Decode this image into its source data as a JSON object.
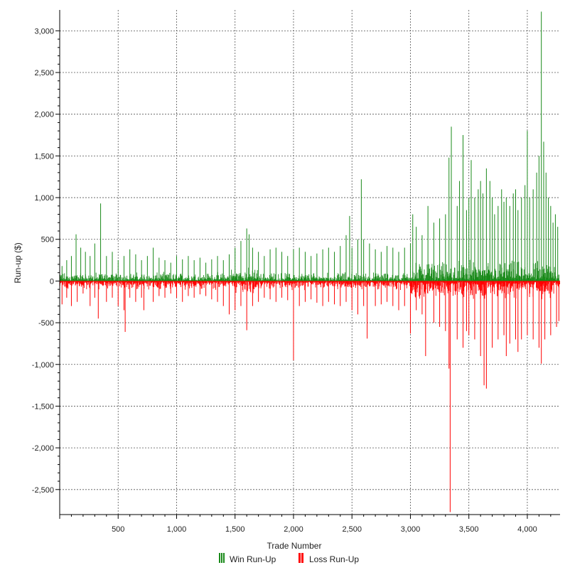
{
  "chart_data": {
    "type": "bar",
    "xlabel": "Trade Number",
    "ylabel": "Run-up ($)",
    "xlim": [
      0,
      4280
    ],
    "ylim": [
      -2800,
      3250
    ],
    "x_ticks": [
      {
        "value": 500,
        "label": "500"
      },
      {
        "value": 1000,
        "label": "1,000"
      },
      {
        "value": 1500,
        "label": "1,500"
      },
      {
        "value": 2000,
        "label": "2,000"
      },
      {
        "value": 2500,
        "label": "2,500"
      },
      {
        "value": 3000,
        "label": "3,000"
      },
      {
        "value": 3500,
        "label": "3,500"
      },
      {
        "value": 4000,
        "label": "4,000"
      }
    ],
    "y_ticks": [
      {
        "value": 3000,
        "label": "3,000"
      },
      {
        "value": 2500,
        "label": "2,500"
      },
      {
        "value": 2000,
        "label": "2,000"
      },
      {
        "value": 1500,
        "label": "1,500"
      },
      {
        "value": 1000,
        "label": "1,000"
      },
      {
        "value": 500,
        "label": "500"
      },
      {
        "value": 0,
        "label": "0"
      },
      {
        "value": -500,
        "label": "-500"
      },
      {
        "value": -1000,
        "label": "-1,000"
      },
      {
        "value": -1500,
        "label": "-1,500"
      },
      {
        "value": -2000,
        "label": "-2,000"
      },
      {
        "value": -2500,
        "label": "-2,500"
      }
    ],
    "grid": true,
    "legend_position": "bottom-center",
    "series": [
      {
        "name": "Win Run-Up",
        "color": "#1a8a1a",
        "points": [
          [
            20,
            180
          ],
          [
            60,
            250
          ],
          [
            100,
            300
          ],
          [
            140,
            560
          ],
          [
            180,
            400
          ],
          [
            220,
            350
          ],
          [
            260,
            300
          ],
          [
            300,
            450
          ],
          [
            350,
            930
          ],
          [
            400,
            300
          ],
          [
            450,
            350
          ],
          [
            500,
            250
          ],
          [
            550,
            300
          ],
          [
            600,
            380
          ],
          [
            650,
            320
          ],
          [
            700,
            250
          ],
          [
            750,
            300
          ],
          [
            800,
            400
          ],
          [
            850,
            280
          ],
          [
            900,
            250
          ],
          [
            950,
            220
          ],
          [
            1000,
            300
          ],
          [
            1050,
            260
          ],
          [
            1100,
            300
          ],
          [
            1150,
            250
          ],
          [
            1200,
            280
          ],
          [
            1250,
            220
          ],
          [
            1300,
            260
          ],
          [
            1350,
            300
          ],
          [
            1400,
            250
          ],
          [
            1450,
            320
          ],
          [
            1500,
            400
          ],
          [
            1550,
            480
          ],
          [
            1600,
            630
          ],
          [
            1620,
            560
          ],
          [
            1650,
            400
          ],
          [
            1700,
            350
          ],
          [
            1750,
            300
          ],
          [
            1800,
            380
          ],
          [
            1850,
            400
          ],
          [
            1900,
            350
          ],
          [
            1950,
            300
          ],
          [
            2000,
            380
          ],
          [
            2050,
            400
          ],
          [
            2100,
            350
          ],
          [
            2150,
            300
          ],
          [
            2200,
            330
          ],
          [
            2250,
            380
          ],
          [
            2300,
            400
          ],
          [
            2350,
            350
          ],
          [
            2400,
            420
          ],
          [
            2450,
            550
          ],
          [
            2480,
            780
          ],
          [
            2500,
            400
          ],
          [
            2550,
            500
          ],
          [
            2580,
            1220
          ],
          [
            2600,
            500
          ],
          [
            2650,
            450
          ],
          [
            2700,
            380
          ],
          [
            2750,
            350
          ],
          [
            2800,
            420
          ],
          [
            2850,
            400
          ],
          [
            2900,
            350
          ],
          [
            2950,
            400
          ],
          [
            3000,
            450
          ],
          [
            3020,
            800
          ],
          [
            3050,
            650
          ],
          [
            3100,
            550
          ],
          [
            3150,
            900
          ],
          [
            3200,
            700
          ],
          [
            3250,
            750
          ],
          [
            3300,
            800
          ],
          [
            3330,
            1480
          ],
          [
            3350,
            1850
          ],
          [
            3400,
            900
          ],
          [
            3420,
            1200
          ],
          [
            3450,
            1750
          ],
          [
            3480,
            850
          ],
          [
            3500,
            1000
          ],
          [
            3520,
            1450
          ],
          [
            3550,
            1000
          ],
          [
            3580,
            1100
          ],
          [
            3600,
            1200
          ],
          [
            3620,
            1050
          ],
          [
            3650,
            1350
          ],
          [
            3680,
            1200
          ],
          [
            3700,
            1000
          ],
          [
            3720,
            800
          ],
          [
            3750,
            900
          ],
          [
            3780,
            1100
          ],
          [
            3800,
            950
          ],
          [
            3820,
            1000
          ],
          [
            3850,
            900
          ],
          [
            3880,
            1050
          ],
          [
            3900,
            1100
          ],
          [
            3920,
            850
          ],
          [
            3950,
            1000
          ],
          [
            3980,
            1150
          ],
          [
            4000,
            1800
          ],
          [
            4020,
            1000
          ],
          [
            4050,
            1100
          ],
          [
            4080,
            1300
          ],
          [
            4100,
            1500
          ],
          [
            4120,
            3230
          ],
          [
            4140,
            1670
          ],
          [
            4160,
            1300
          ],
          [
            4180,
            1000
          ],
          [
            4200,
            900
          ],
          [
            4220,
            700
          ],
          [
            4240,
            800
          ],
          [
            4260,
            650
          ]
        ]
      },
      {
        "name": "Loss Run-Up",
        "color": "#ff0000",
        "points": [
          [
            20,
            -280
          ],
          [
            60,
            -200
          ],
          [
            100,
            -300
          ],
          [
            150,
            -250
          ],
          [
            200,
            -150
          ],
          [
            260,
            -300
          ],
          [
            300,
            -200
          ],
          [
            330,
            -450
          ],
          [
            400,
            -250
          ],
          [
            450,
            -200
          ],
          [
            500,
            -300
          ],
          [
            550,
            -350
          ],
          [
            560,
            -610
          ],
          [
            600,
            -200
          ],
          [
            650,
            -250
          ],
          [
            700,
            -200
          ],
          [
            720,
            -350
          ],
          [
            800,
            -250
          ],
          [
            850,
            -180
          ],
          [
            900,
            -200
          ],
          [
            950,
            -150
          ],
          [
            1000,
            -200
          ],
          [
            1050,
            -250
          ],
          [
            1100,
            -180
          ],
          [
            1150,
            -200
          ],
          [
            1200,
            -160
          ],
          [
            1250,
            -180
          ],
          [
            1300,
            -220
          ],
          [
            1350,
            -250
          ],
          [
            1400,
            -300
          ],
          [
            1450,
            -400
          ],
          [
            1500,
            -350
          ],
          [
            1550,
            -300
          ],
          [
            1600,
            -590
          ],
          [
            1650,
            -300
          ],
          [
            1700,
            -250
          ],
          [
            1750,
            -200
          ],
          [
            1800,
            -220
          ],
          [
            1850,
            -250
          ],
          [
            1900,
            -200
          ],
          [
            1950,
            -230
          ],
          [
            2000,
            -950
          ],
          [
            2050,
            -300
          ],
          [
            2100,
            -250
          ],
          [
            2150,
            -220
          ],
          [
            2200,
            -260
          ],
          [
            2250,
            -300
          ],
          [
            2300,
            -250
          ],
          [
            2350,
            -280
          ],
          [
            2400,
            -300
          ],
          [
            2450,
            -250
          ],
          [
            2500,
            -350
          ],
          [
            2550,
            -400
          ],
          [
            2600,
            -300
          ],
          [
            2630,
            -690
          ],
          [
            2700,
            -300
          ],
          [
            2750,
            -280
          ],
          [
            2800,
            -250
          ],
          [
            2850,
            -300
          ],
          [
            2900,
            -350
          ],
          [
            2950,
            -300
          ],
          [
            3000,
            -630
          ],
          [
            3050,
            -350
          ],
          [
            3100,
            -400
          ],
          [
            3130,
            -900
          ],
          [
            3200,
            -500
          ],
          [
            3250,
            -550
          ],
          [
            3300,
            -600
          ],
          [
            3330,
            -1050
          ],
          [
            3340,
            -2770
          ],
          [
            3400,
            -700
          ],
          [
            3450,
            -800
          ],
          [
            3480,
            -600
          ],
          [
            3500,
            -650
          ],
          [
            3550,
            -700
          ],
          [
            3600,
            -900
          ],
          [
            3630,
            -1250
          ],
          [
            3650,
            -1290
          ],
          [
            3700,
            -800
          ],
          [
            3750,
            -700
          ],
          [
            3800,
            -650
          ],
          [
            3820,
            -900
          ],
          [
            3850,
            -750
          ],
          [
            3900,
            -700
          ],
          [
            3920,
            -850
          ],
          [
            3950,
            -700
          ],
          [
            4000,
            -650
          ],
          [
            4050,
            -700
          ],
          [
            4100,
            -800
          ],
          [
            4120,
            -990
          ],
          [
            4150,
            -700
          ],
          [
            4200,
            -650
          ],
          [
            4250,
            -550
          ],
          [
            4270,
            -480
          ]
        ]
      }
    ]
  }
}
